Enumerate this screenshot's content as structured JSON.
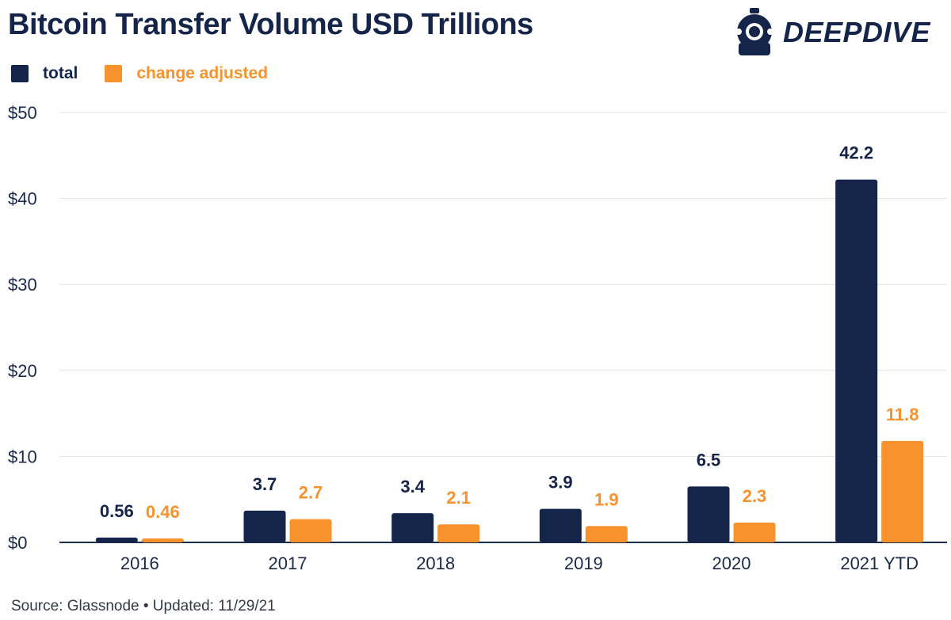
{
  "brand": {
    "name": "DEEPDIVE",
    "logo_icon": "diving-helmet-icon",
    "color_navy": "#15254a"
  },
  "chart_data": {
    "type": "bar",
    "title": "Bitcoin Transfer Volume USD Trillions",
    "categories": [
      "2016",
      "2017",
      "2018",
      "2019",
      "2020",
      "2021 YTD"
    ],
    "series": [
      {
        "name": "total",
        "values": [
          0.56,
          3.7,
          3.4,
          3.9,
          6.5,
          42.2
        ],
        "color": "#15254a"
      },
      {
        "name": "change adjusted",
        "values": [
          0.46,
          2.7,
          2.1,
          1.9,
          2.3,
          11.8
        ],
        "color": "#f7922d"
      }
    ],
    "y_ticks": [
      "$0",
      "$10",
      "$20",
      "$30",
      "$40",
      "$50"
    ],
    "ylim": [
      0,
      50
    ],
    "grid": true,
    "legend_position": "top-left",
    "data_labels": true
  },
  "source_note": "Source: Glassnode • Updated: 11/29/21"
}
